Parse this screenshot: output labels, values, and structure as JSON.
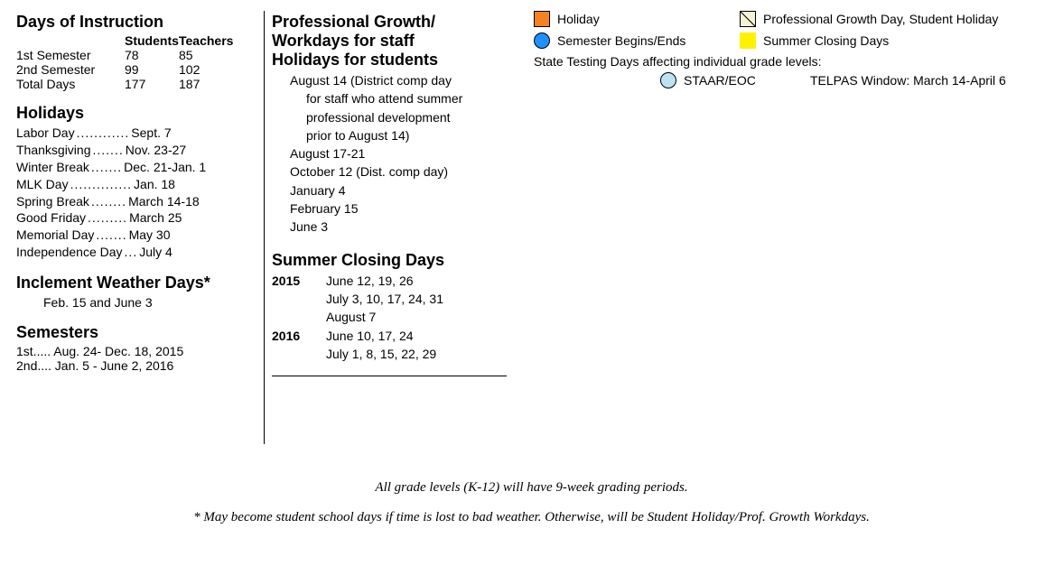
{
  "col1": {
    "days_heading": "Days of Instruction",
    "head_students": "Students",
    "head_teachers": "Teachers",
    "rows": [
      {
        "label": "1st Semester",
        "students": "78",
        "teachers": "85"
      },
      {
        "label": "2nd Semester",
        "students": "99",
        "teachers": "102"
      },
      {
        "label": "Total Days",
        "students": "177",
        "teachers": "187"
      }
    ],
    "holidays_heading": "Holidays",
    "holidays": [
      {
        "name": "Labor Day",
        "dots": "............",
        "date": "Sept. 7"
      },
      {
        "name": "Thanksgiving",
        "dots": ".......",
        "date": "Nov. 23-27"
      },
      {
        "name": "Winter Break",
        "dots": ".......",
        "date": "Dec. 21-Jan. 1"
      },
      {
        "name": "MLK Day",
        "dots": "..............",
        "date": "Jan. 18"
      },
      {
        "name": "Spring Break",
        "dots": "........",
        "date": "March 14-18"
      },
      {
        "name": "Good Friday",
        "dots": ".........",
        "date": "March 25"
      },
      {
        "name": "Memorial Day",
        "dots": ".......",
        "date": "May 30"
      },
      {
        "name": "Independence Day",
        "dots": "...",
        "date": "July 4"
      }
    ],
    "weather_heading": "Inclement Weather Days*",
    "weather_text": "Feb. 15 and June 3",
    "semesters_heading": "Semesters",
    "sem1": "1st..... Aug. 24- Dec. 18, 2015",
    "sem2": "2nd.... Jan. 5 - June 2, 2016"
  },
  "col2": {
    "growth_heading1": "Professional Growth/",
    "growth_heading2": "Workdays for staff",
    "growth_heading3": "Holidays for students",
    "wd1a": "August 14 (District comp day",
    "wd1b": "for staff who attend summer",
    "wd1c": "professional development",
    "wd1d": "prior to August 14)",
    "wd2": "August 17-21",
    "wd3": "October 12 (Dist. comp day)",
    "wd4": "January 4",
    "wd5": "February 15",
    "wd6": "June 3",
    "summer_heading": "Summer Closing Days",
    "sy2015": "2015",
    "s2015a": "June 12, 19, 26",
    "s2015b": "July 3, 10, 17, 24, 31",
    "s2015c": "August 7",
    "sy2016": "2016",
    "s2016a": "June 10, 17, 24",
    "s2016b": "July 1, 8, 15, 22, 29"
  },
  "legend": {
    "holiday": {
      "label": "Holiday",
      "color": "#f58220"
    },
    "prof": {
      "label": "Professional Growth Day, Student Holiday",
      "color": "#f6f2d8"
    },
    "semester": {
      "label": "Semester Begins/Ends",
      "color": "#1e90ff"
    },
    "summer": {
      "label": "Summer Closing Days",
      "color": "#fff200"
    },
    "testing_line": "State Testing Days affecting individual grade levels:",
    "staar": {
      "label": "STAAR/EOC",
      "color": "#bde3f3"
    },
    "telpas": "TELPAS Window: March 14-April 6"
  },
  "footer": {
    "line1": "All grade levels (K-12) will have 9-week grading periods.",
    "line2": "* May become student school days if time is lost to bad weather. Otherwise, will be Student Holiday/Prof. Growth Workdays."
  }
}
